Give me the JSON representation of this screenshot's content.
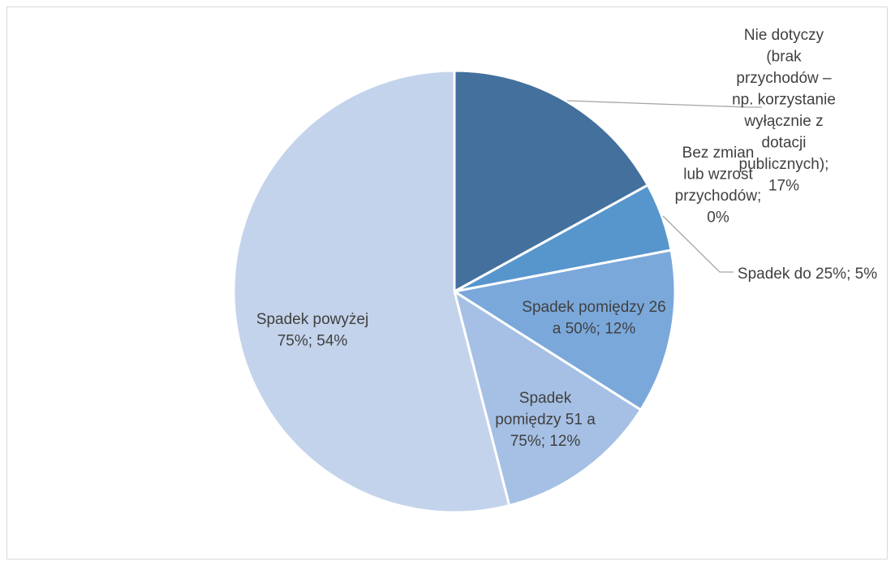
{
  "chart_data": {
    "type": "pie",
    "title": "",
    "slices": [
      {
        "label": "Nie dotyczy (brak przychodów – np. korzystanie wyłącznie z dotacji publicznych)",
        "value": 17,
        "display": [
          "Nie dotyczy",
          "(brak",
          "przychodów –",
          "np. korzystanie",
          "wyłącznie z",
          "dotacji",
          "publicznych);",
          "17%"
        ],
        "color": "#43709d"
      },
      {
        "label": "Bez zmian lub wzrost przychodów",
        "value": 0,
        "display": [
          "Bez zmian",
          "lub wzrost",
          "przychodów;",
          "0%"
        ],
        "color": "#4a84bf"
      },
      {
        "label": "Spadek do 25%",
        "value": 5,
        "display": [
          "Spadek do 25%; 5%"
        ],
        "color": "#5795cd"
      },
      {
        "label": "Spadek pomiędzy 26 a 50%",
        "value": 12,
        "display": [
          "Spadek pomiędzy 26",
          "a 50%; 12%"
        ],
        "color": "#7aa8db"
      },
      {
        "label": "Spadek pomiędzy 51 a 75%",
        "value": 12,
        "display": [
          "Spadek",
          "pomiędzy 51 a",
          "75%; 12%"
        ],
        "color": "#a5c0e4"
      },
      {
        "label": "Spadek powyżej 75%",
        "value": 54,
        "display": [
          "Spadek powyżej",
          "75%; 54%"
        ],
        "color": "#c3d3eb"
      }
    ],
    "legend": "none"
  }
}
